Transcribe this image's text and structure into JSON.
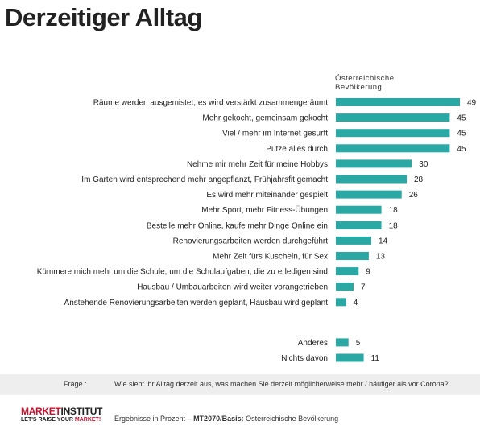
{
  "title": "Derzeitiger Alltag",
  "column_header": "Österreichische Bevölkerung",
  "chart_data": {
    "type": "bar",
    "orientation": "horizontal",
    "color": "#2aa8a3",
    "series": [
      {
        "name": "Österreichische Bevölkerung",
        "values": [
          49,
          45,
          45,
          45,
          30,
          28,
          26,
          18,
          18,
          14,
          13,
          9,
          7,
          4,
          5,
          11
        ]
      }
    ],
    "categories": [
      "Räume werden ausgemistet,  es wird verstärkt zusammengeräumt",
      "Mehr gekocht, gemeinsam gekocht",
      "Viel / mehr im Internet gesurft",
      "Putze alles durch",
      "Nehme mir mehr Zeit für meine Hobbys",
      "Im Garten wird entsprechend mehr angepflanzt, Frühjahrsfit gemacht",
      "Es wird mehr miteinander gespielt",
      "Mehr Sport, mehr Fitness-Übungen",
      "Bestelle mehr Online, kaufe mehr Dinge Online ein",
      "Renovierungsarbeiten werden durchgeführt",
      "Mehr Zeit fürs Kuscheln, für Sex",
      "Kümmere mich mehr um die Schule, um die Schulaufgaben, die zu erledigen sind",
      "Hausbau / Umbauarbeiten wird weiter vorangetrieben",
      "Anstehende Renovierungsarbeiten werden geplant, Hausbau wird geplant",
      "Anderes",
      "Nichts davon"
    ],
    "groups": [
      {
        "start": 0,
        "count": 14
      },
      {
        "start": 14,
        "count": 2
      }
    ],
    "xlim": [
      0,
      49
    ]
  },
  "question": {
    "label": "Frage :",
    "text": "Wie sieht ihr Alltag derzeit aus, was machen Sie derzeit möglicherweise mehr / häufiger als vor Corona?"
  },
  "logo": {
    "part1": "MARKET",
    "part2": "INSTITUT",
    "tagline_prefix": "LET'S RAISE YOUR ",
    "tagline_emph": "MARKET!"
  },
  "footnote": {
    "prefix": "Ergebnisse in Prozent – ",
    "study": "MT2070/Basis:",
    "base": " Österreichische Bevölkerung"
  }
}
